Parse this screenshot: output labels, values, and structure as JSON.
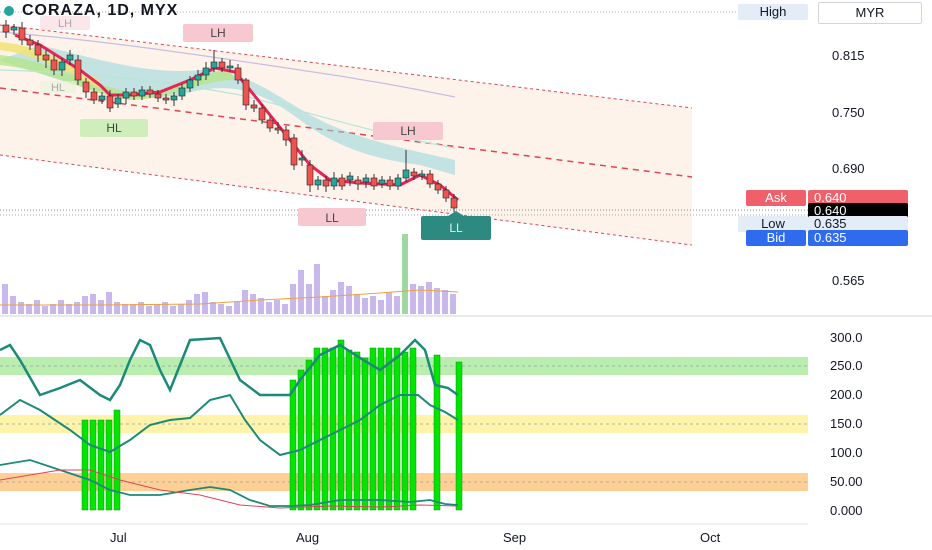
{
  "header": {
    "title": "CORAZA, 1D, MYX"
  },
  "top_right": {
    "high_label": "High",
    "currency": "MYR"
  },
  "price_axis": {
    "ticks": [
      "0.815",
      "0.750",
      "0.690",
      "0.565"
    ]
  },
  "price_labels": {
    "ask_label": "Ask",
    "ask_value": "0.640",
    "last_value": "0.640",
    "low_label": "Low",
    "low_value": "0.635",
    "bid_label": "Bid",
    "bid_value": "0.635"
  },
  "osc_axis": {
    "ticks": [
      "300.0",
      "250.0",
      "200.0",
      "150.0",
      "100.0",
      "50.00",
      "0.000"
    ]
  },
  "time_axis": {
    "ticks": [
      "Jul",
      "Aug",
      "Sep",
      "Oct"
    ]
  },
  "annotations": [
    "LH",
    "LH",
    "LH",
    "HL",
    "HL",
    "LL",
    "LL"
  ],
  "colors": {
    "bull": "#26a69a",
    "bear": "#ef5350",
    "volume": "#c9b8ec",
    "osc_bar": "#00e600",
    "osc_line": "#1b8a76"
  }
}
